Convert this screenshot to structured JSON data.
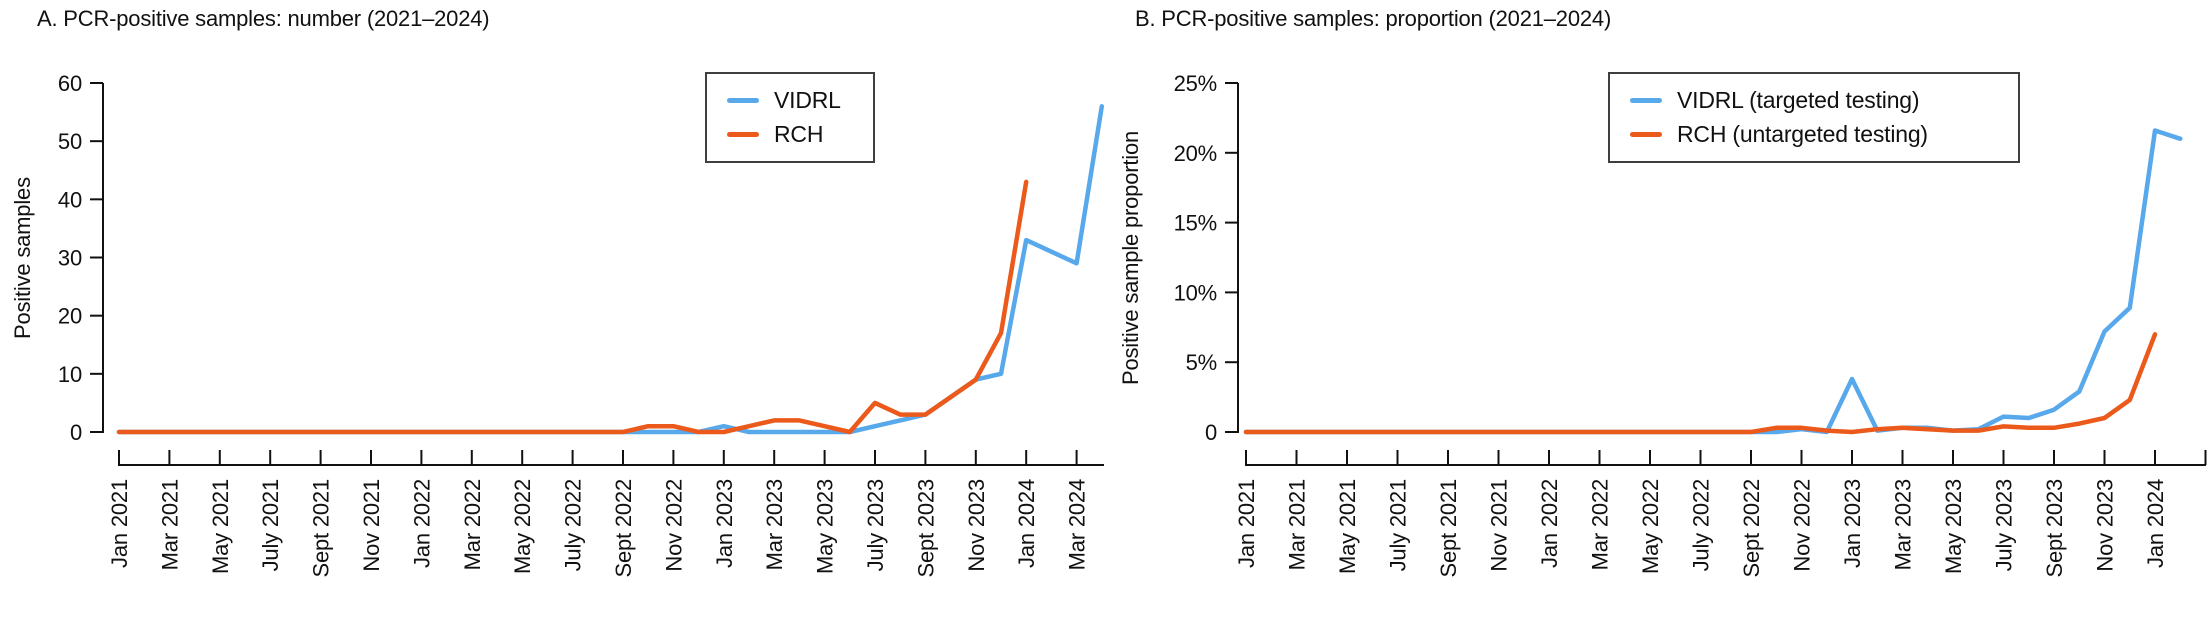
{
  "colors": {
    "vidrl": "#58a8ec",
    "rch": "#ec5a1b",
    "axis": "#111111",
    "text": "#111111",
    "legend_border": "#3f3f3f",
    "background": "#ffffff"
  },
  "panels": [
    {
      "title": "A. PCR-positive samples: number (2021–2024)",
      "y_axis": {
        "label": "Positive samples",
        "tick_labels": [
          "0",
          "10",
          "20",
          "30",
          "40",
          "50",
          "60"
        ],
        "tick_values": [
          0,
          10,
          20,
          30,
          40,
          50,
          60
        ]
      },
      "x_axis": {
        "tick_labels": [
          "Jan 2021",
          "Mar 2021",
          "May 2021",
          "July 2021",
          "Sept 2021",
          "Nov 2021",
          "Jan 2022",
          "Mar 2022",
          "May 2022",
          "July 2022",
          "Sept 2022",
          "Nov 2022",
          "Jan 2023",
          "Mar 2023",
          "May 2023",
          "July 2023",
          "Sept 2023",
          "Nov 2023",
          "Jan 2024",
          "Mar 2024"
        ]
      },
      "legend": [
        {
          "label": "VIDRL",
          "color_key": "vidrl"
        },
        {
          "label": "RCH",
          "color_key": "rch"
        }
      ],
      "chart_data": {
        "type": "line",
        "title": "A. PCR-positive samples: number (2021–2024)",
        "xlabel": "",
        "ylabel": "Positive samples",
        "ylim": [
          0,
          60
        ],
        "grid": false,
        "legend_position": "top-right",
        "x": [
          "Jan 2021",
          "Feb 2021",
          "Mar 2021",
          "Apr 2021",
          "May 2021",
          "Jun 2021",
          "Jul 2021",
          "Aug 2021",
          "Sep 2021",
          "Oct 2021",
          "Nov 2021",
          "Dec 2021",
          "Jan 2022",
          "Feb 2022",
          "Mar 2022",
          "Apr 2022",
          "May 2022",
          "Jun 2022",
          "Jul 2022",
          "Aug 2022",
          "Sep 2022",
          "Oct 2022",
          "Nov 2022",
          "Dec 2022",
          "Jan 2023",
          "Feb 2023",
          "Mar 2023",
          "Apr 2023",
          "May 2023",
          "Jun 2023",
          "Jul 2023",
          "Aug 2023",
          "Sep 2023",
          "Oct 2023",
          "Nov 2023",
          "Dec 2023",
          "Jan 2024",
          "Feb 2024",
          "Mar 2024",
          "Apr 2024"
        ],
        "series": [
          {
            "name": "VIDRL",
            "color_key": "vidrl",
            "values": [
              0,
              0,
              0,
              0,
              0,
              0,
              0,
              0,
              0,
              0,
              0,
              0,
              0,
              0,
              0,
              0,
              0,
              0,
              0,
              0,
              0,
              0,
              0,
              0,
              1,
              0,
              0,
              0,
              0,
              0,
              1,
              2,
              3,
              6,
              9,
              10,
              33,
              31,
              29,
              56
            ]
          },
          {
            "name": "RCH",
            "color_key": "rch",
            "values": [
              0,
              0,
              0,
              0,
              0,
              0,
              0,
              0,
              0,
              0,
              0,
              0,
              0,
              0,
              0,
              0,
              0,
              0,
              0,
              0,
              0,
              1,
              1,
              0,
              0,
              1,
              2,
              2,
              1,
              0,
              5,
              3,
              3,
              6,
              9,
              17,
              43
            ]
          }
        ]
      }
    },
    {
      "title": "B. PCR-positive samples: proportion (2021–2024)",
      "y_axis": {
        "label": "Positive sample proportion",
        "tick_labels": [
          "0",
          "5%",
          "10%",
          "15%",
          "20%",
          "25%"
        ],
        "tick_values": [
          0,
          5,
          10,
          15,
          20,
          25
        ]
      },
      "x_axis": {
        "tick_labels": [
          "Jan 2021",
          "Mar 2021",
          "May 2021",
          "July 2021",
          "Sept 2021",
          "Nov 2021",
          "Jan 2022",
          "Mar 2022",
          "May 2022",
          "July 2022",
          "Sept 2022",
          "Nov 2022",
          "Jan 2023",
          "Mar 2023",
          "May 2023",
          "July 2023",
          "Sept 2023",
          "Nov 2023",
          "Jan 2024"
        ]
      },
      "legend": [
        {
          "label": "VIDRL (targeted testing)",
          "color_key": "vidrl"
        },
        {
          "label": "RCH (untargeted testing)",
          "color_key": "rch"
        }
      ],
      "chart_data": {
        "type": "line",
        "title": "B. PCR-positive samples: proportion (2021–2024)",
        "xlabel": "",
        "ylabel": "Positive sample proportion",
        "y_unit": "%",
        "ylim": [
          0,
          25
        ],
        "grid": false,
        "legend_position": "top-right",
        "x": [
          "Jan 2021",
          "Feb 2021",
          "Mar 2021",
          "Apr 2021",
          "May 2021",
          "Jun 2021",
          "Jul 2021",
          "Aug 2021",
          "Sep 2021",
          "Oct 2021",
          "Nov 2021",
          "Dec 2021",
          "Jan 2022",
          "Feb 2022",
          "Mar 2022",
          "Apr 2022",
          "May 2022",
          "Jun 2022",
          "Jul 2022",
          "Aug 2022",
          "Sep 2022",
          "Oct 2022",
          "Nov 2022",
          "Dec 2022",
          "Jan 2023",
          "Feb 2023",
          "Mar 2023",
          "Apr 2023",
          "May 2023",
          "Jun 2023",
          "Jul 2023",
          "Aug 2023",
          "Sep 2023",
          "Oct 2023",
          "Nov 2023",
          "Dec 2023",
          "Jan 2024",
          "Feb 2024"
        ],
        "series": [
          {
            "name": "VIDRL (targeted testing)",
            "color_key": "vidrl",
            "values": [
              0,
              0,
              0,
              0,
              0,
              0,
              0,
              0,
              0,
              0,
              0,
              0,
              0,
              0,
              0,
              0,
              0,
              0,
              0,
              0,
              0,
              0,
              0.2,
              0,
              3.8,
              0.1,
              0.3,
              0.3,
              0.1,
              0.2,
              1.1,
              1.0,
              1.6,
              2.9,
              7.2,
              8.9,
              21.6,
              21.0
            ]
          },
          {
            "name": "RCH (untargeted testing)",
            "color_key": "rch",
            "values": [
              0,
              0,
              0,
              0,
              0,
              0,
              0,
              0,
              0,
              0,
              0,
              0,
              0,
              0,
              0,
              0,
              0,
              0,
              0,
              0,
              0,
              0.3,
              0.3,
              0.1,
              0,
              0.2,
              0.3,
              0.2,
              0.1,
              0.1,
              0.4,
              0.3,
              0.3,
              0.6,
              1.0,
              2.3,
              7.0
            ]
          }
        ]
      }
    }
  ]
}
